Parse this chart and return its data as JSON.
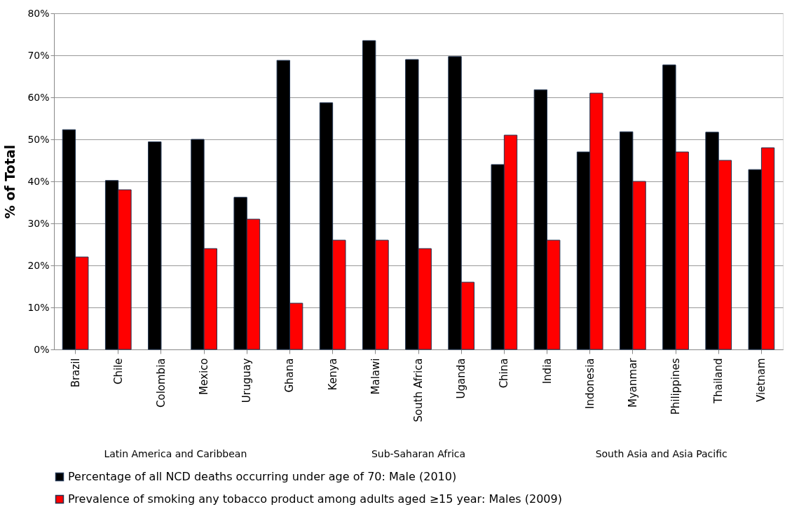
{
  "chart_data": {
    "type": "bar",
    "ylabel": "% of Total",
    "categories": [
      "Brazil",
      "Chile",
      "Colombia",
      "Mexico",
      "Uruguay",
      "Ghana",
      "Kenya",
      "Malawi",
      "South Africa",
      "Uganda",
      "China",
      "India",
      "Indonesia",
      "Myanmar",
      "Philippines",
      "Thailand",
      "Vietnam"
    ],
    "series": [
      {
        "name": "Percentage of all NCD deaths occurring under age of 70: Male (2010)",
        "color": "#000000",
        "values": [
          52.3,
          40.2,
          49.4,
          50,
          36.2,
          68.8,
          58.7,
          73.5,
          69,
          69.7,
          44,
          61.8,
          47,
          51.8,
          67.7,
          51.7,
          42.8
        ]
      },
      {
        "name": "Prevalence of smoking any tobacco product among adults aged ≥15 year: Males (2009)",
        "color": "#ff0000",
        "values": [
          22,
          38,
          null,
          24,
          31,
          11,
          26,
          26,
          24,
          16,
          51,
          26,
          61,
          40,
          47,
          45,
          48
        ]
      }
    ],
    "ylim": [
      0,
      80
    ],
    "yticks": [
      {
        "value": 0,
        "label": "0%"
      },
      {
        "value": 10,
        "label": "10%"
      },
      {
        "value": 20,
        "label": "20%"
      },
      {
        "value": 30,
        "label": "30%"
      },
      {
        "value": 40,
        "label": "40%"
      },
      {
        "value": 50,
        "label": "50%"
      },
      {
        "value": 60,
        "label": "60%"
      },
      {
        "value": 70,
        "label": "70%"
      },
      {
        "value": 80,
        "label": "80%"
      }
    ],
    "grid": "y",
    "legend": "bottom",
    "annotations": [
      "Latin America and Caribbean",
      "Sub-Saharan Africa",
      "South Asia and Asia Pacific"
    ]
  }
}
